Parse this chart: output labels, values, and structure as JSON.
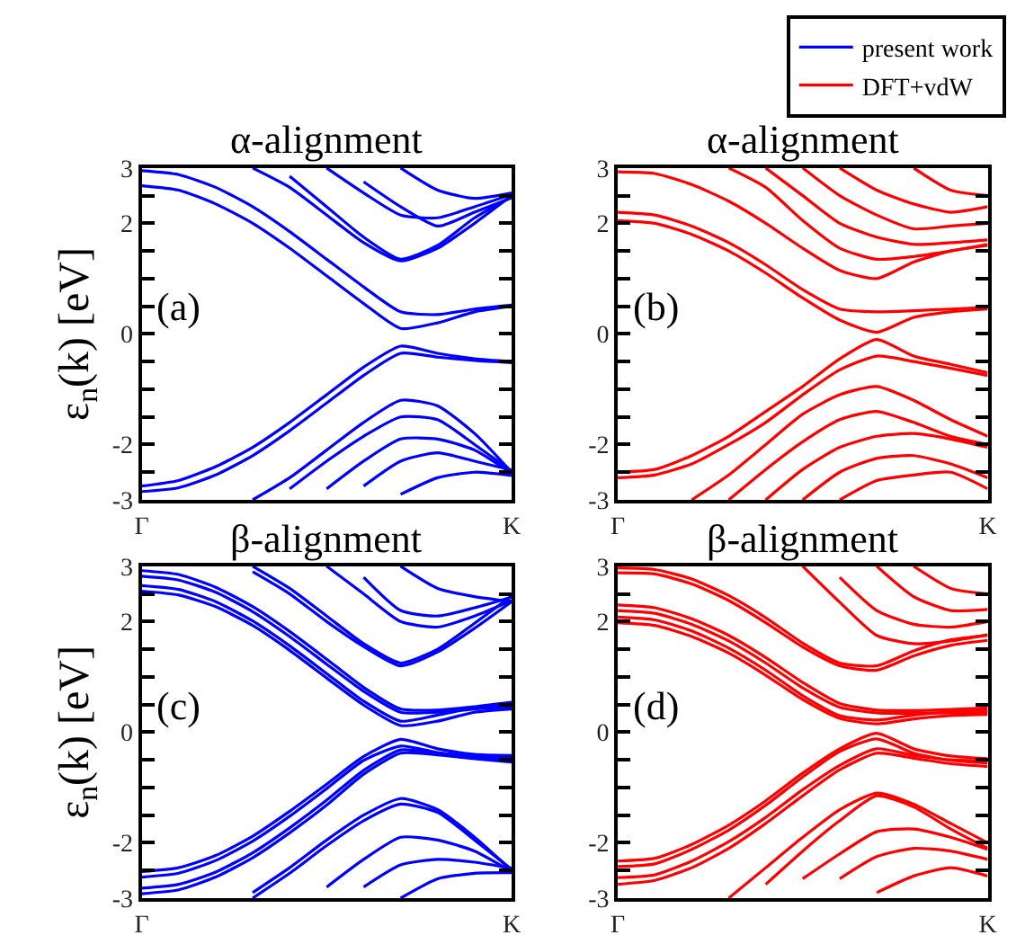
{
  "chart_data": [
    {
      "type": "line",
      "title": "α-alignment",
      "ylabel": "ε$_{n}$(k) [eV]",
      "annotations": [
        "(a)"
      ],
      "categories": [
        "Γ",
        null,
        null,
        null,
        null,
        null,
        null,
        null,
        null,
        null,
        "K"
      ],
      "ylim": [
        -3,
        3
      ],
      "yticks": [
        -3,
        {
          "value": -2.5,
          "label": null
        },
        -2,
        {
          "value": -1.5,
          "label": null
        },
        {
          "value": -1,
          "label": null
        },
        {
          "value": -0.5,
          "label": null
        },
        0,
        {
          "value": 0.5,
          "label": null
        },
        {
          "value": 1,
          "label": null
        },
        {
          "value": 1.5,
          "label": null
        },
        2,
        {
          "value": 2.5,
          "label": null
        },
        3
      ],
      "legend": "top right",
      "series": [
        {
          "name": "present work",
          "color": "#0000ff",
          "values": [
            2.68,
            2.6,
            2.35,
            2.0,
            1.55,
            1.05,
            0.55,
            0.1,
            0.2,
            0.4,
            0.5
          ]
        },
        {
          "color": "#0000ff",
          "values": [
            2.95,
            2.88,
            2.65,
            2.3,
            1.85,
            1.35,
            0.85,
            0.4,
            0.35,
            0.45,
            0.52
          ]
        },
        {
          "color": "#0000ff",
          "values": [
            -2.75,
            -2.65,
            -2.4,
            -2.05,
            -1.6,
            -1.1,
            -0.6,
            -0.22,
            -0.35,
            -0.45,
            -0.5
          ]
        },
        {
          "color": "#0000ff",
          "values": [
            -2.85,
            -2.78,
            -2.55,
            -2.2,
            -1.75,
            -1.25,
            -0.75,
            -0.35,
            -0.42,
            -0.48,
            -0.52
          ]
        },
        {
          "color": "#0000ff",
          "values": [
            null,
            null,
            null,
            3.0,
            2.65,
            2.15,
            1.65,
            1.32,
            1.55,
            2.0,
            2.5
          ]
        },
        {
          "color": "#0000ff",
          "values": [
            null,
            null,
            null,
            null,
            2.85,
            2.3,
            1.75,
            1.35,
            1.6,
            2.1,
            2.48
          ]
        },
        {
          "color": "#0000ff",
          "values": [
            null,
            null,
            null,
            null,
            null,
            3.0,
            2.55,
            2.15,
            2.1,
            2.3,
            2.52
          ]
        },
        {
          "color": "#0000ff",
          "values": [
            null,
            null,
            null,
            null,
            null,
            null,
            2.75,
            2.3,
            1.95,
            2.2,
            2.46
          ]
        },
        {
          "color": "#0000ff",
          "values": [
            null,
            null,
            null,
            null,
            null,
            null,
            null,
            3.0,
            2.6,
            2.45,
            2.55
          ]
        },
        {
          "color": "#0000ff",
          "values": [
            null,
            null,
            null,
            -3.0,
            -2.6,
            -2.1,
            -1.6,
            -1.2,
            -1.3,
            -1.8,
            -2.5
          ]
        },
        {
          "color": "#0000ff",
          "values": [
            null,
            null,
            null,
            null,
            -2.8,
            -2.3,
            -1.85,
            -1.5,
            -1.55,
            -2.0,
            -2.48
          ]
        },
        {
          "color": "#0000ff",
          "values": [
            null,
            null,
            null,
            null,
            null,
            -2.8,
            -2.3,
            -1.9,
            -1.9,
            -2.1,
            -2.52
          ]
        },
        {
          "color": "#0000ff",
          "values": [
            null,
            null,
            null,
            null,
            null,
            null,
            -2.75,
            -2.3,
            -2.15,
            -2.3,
            -2.46
          ]
        },
        {
          "color": "#0000ff",
          "values": [
            null,
            null,
            null,
            null,
            null,
            null,
            null,
            -2.9,
            -2.6,
            -2.5,
            -2.56
          ]
        }
      ]
    },
    {
      "type": "line",
      "title": "α-alignment",
      "annotations": [
        "(b)"
      ],
      "categories": [
        "Γ",
        null,
        null,
        null,
        null,
        null,
        null,
        null,
        null,
        null,
        "K"
      ],
      "ylim": [
        -3,
        3
      ],
      "yticks": [
        -3,
        {
          "value": -2.5,
          "label": null
        },
        -2,
        {
          "value": -1.5,
          "label": null
        },
        {
          "value": -1,
          "label": null
        },
        {
          "value": -0.5,
          "label": null
        },
        0,
        {
          "value": 0.5,
          "label": null
        },
        {
          "value": 1,
          "label": null
        },
        {
          "value": 1.5,
          "label": null
        },
        2,
        {
          "value": 2.5,
          "label": null
        },
        3
      ],
      "legend": "top right",
      "series": [
        {
          "name": "DFT+vdW",
          "color": "#ff0000",
          "values": [
            2.05,
            2.0,
            1.8,
            1.5,
            1.1,
            0.65,
            0.25,
            0.03,
            0.3,
            0.4,
            0.45
          ]
        },
        {
          "color": "#ff0000",
          "values": [
            2.2,
            2.15,
            1.95,
            1.65,
            1.25,
            0.8,
            0.45,
            0.4,
            0.42,
            0.45,
            0.48
          ]
        },
        {
          "color": "#ff0000",
          "values": [
            2.93,
            2.9,
            2.7,
            2.4,
            2.0,
            1.55,
            1.15,
            1.0,
            1.3,
            1.5,
            1.6
          ]
        },
        {
          "color": "#ff0000",
          "values": [
            -2.5,
            -2.45,
            -2.2,
            -1.85,
            -1.4,
            -0.95,
            -0.45,
            -0.1,
            -0.4,
            -0.55,
            -0.7
          ]
        },
        {
          "color": "#ff0000",
          "values": [
            -2.6,
            -2.55,
            -2.35,
            -2.0,
            -1.6,
            -1.1,
            -0.65,
            -0.4,
            -0.5,
            -0.62,
            -0.75
          ]
        },
        {
          "color": "#ff0000",
          "values": [
            null,
            null,
            -3.0,
            -2.55,
            -2.0,
            -1.45,
            -1.1,
            -0.95,
            -1.2,
            -1.55,
            -1.85
          ]
        },
        {
          "color": "#ff0000",
          "values": [
            null,
            null,
            null,
            -3.0,
            -2.45,
            -1.95,
            -1.55,
            -1.4,
            -1.6,
            -1.85,
            -2.0
          ]
        },
        {
          "color": "#ff0000",
          "values": [
            null,
            null,
            null,
            null,
            -3.0,
            -2.45,
            -2.05,
            -1.85,
            -1.8,
            -1.9,
            -2.05
          ]
        },
        {
          "color": "#ff0000",
          "values": [
            null,
            null,
            null,
            null,
            null,
            -3.0,
            -2.5,
            -2.25,
            -2.2,
            -2.35,
            -2.6
          ]
        },
        {
          "color": "#ff0000",
          "values": [
            null,
            null,
            null,
            null,
            null,
            null,
            -3.0,
            -2.65,
            -2.55,
            -2.5,
            -2.8
          ]
        },
        {
          "color": "#ff0000",
          "values": [
            null,
            null,
            null,
            3.0,
            2.65,
            2.05,
            1.55,
            1.35,
            1.4,
            1.5,
            1.62
          ]
        },
        {
          "color": "#ff0000",
          "values": [
            null,
            null,
            null,
            null,
            3.0,
            2.5,
            2.0,
            1.75,
            1.62,
            1.65,
            1.7
          ]
        },
        {
          "color": "#ff0000",
          "values": [
            null,
            null,
            null,
            null,
            null,
            3.0,
            2.5,
            2.15,
            1.9,
            1.95,
            2.0
          ]
        },
        {
          "color": "#ff0000",
          "values": [
            null,
            null,
            null,
            null,
            null,
            null,
            3.0,
            2.6,
            2.35,
            2.2,
            2.3
          ]
        },
        {
          "color": "#ff0000",
          "values": [
            null,
            null,
            null,
            null,
            null,
            null,
            null,
            null,
            3.0,
            2.6,
            2.5
          ]
        }
      ]
    },
    {
      "type": "line",
      "title": "β-alignment",
      "ylabel": "ε$_{n}$(k) [eV]",
      "annotations": [
        "(c)"
      ],
      "categories": [
        "Γ",
        null,
        null,
        null,
        null,
        null,
        null,
        null,
        null,
        null,
        "K"
      ],
      "ylim": [
        -3,
        3
      ],
      "yticks": [
        -3,
        {
          "value": -2.5,
          "label": null
        },
        -2,
        {
          "value": -1.5,
          "label": null
        },
        {
          "value": -1,
          "label": null
        },
        {
          "value": -0.5,
          "label": null
        },
        0,
        {
          "value": 0.5,
          "label": null
        },
        {
          "value": 1,
          "label": null
        },
        {
          "value": 1.5,
          "label": null
        },
        2,
        {
          "value": 2.5,
          "label": null
        },
        3
      ],
      "series": [
        {
          "color": "#0000ff",
          "values": [
            2.55,
            2.48,
            2.27,
            1.93,
            1.48,
            0.98,
            0.49,
            0.12,
            0.2,
            0.36,
            0.42
          ]
        },
        {
          "color": "#0000ff",
          "values": [
            2.65,
            2.58,
            2.36,
            2.01,
            1.56,
            1.06,
            0.56,
            0.2,
            0.31,
            0.44,
            0.5
          ]
        },
        {
          "color": "#0000ff",
          "values": [
            2.82,
            2.75,
            2.53,
            2.18,
            1.73,
            1.23,
            0.74,
            0.36,
            0.36,
            0.42,
            0.46
          ]
        },
        {
          "color": "#0000ff",
          "values": [
            2.92,
            2.85,
            2.62,
            2.27,
            1.82,
            1.32,
            0.81,
            0.42,
            0.4,
            0.46,
            0.54
          ]
        },
        {
          "color": "#0000ff",
          "values": [
            -2.52,
            -2.45,
            -2.23,
            -1.88,
            -1.43,
            -0.94,
            -0.44,
            -0.13,
            -0.3,
            -0.4,
            -0.42
          ]
        },
        {
          "color": "#0000ff",
          "values": [
            -2.62,
            -2.55,
            -2.32,
            -1.97,
            -1.52,
            -1.02,
            -0.51,
            -0.25,
            -0.37,
            -0.46,
            -0.5
          ]
        },
        {
          "color": "#0000ff",
          "values": [
            -2.82,
            -2.75,
            -2.53,
            -2.18,
            -1.73,
            -1.23,
            -0.69,
            -0.32,
            -0.38,
            -0.42,
            -0.46
          ]
        },
        {
          "color": "#0000ff",
          "values": [
            -2.92,
            -2.85,
            -2.62,
            -2.27,
            -1.82,
            -1.32,
            -0.76,
            -0.38,
            -0.41,
            -0.48,
            -0.54
          ]
        },
        {
          "color": "#0000ff",
          "values": [
            null,
            null,
            null,
            2.9,
            2.5,
            2.0,
            1.55,
            1.2,
            1.45,
            1.88,
            2.36
          ]
        },
        {
          "color": "#0000ff",
          "values": [
            null,
            null,
            null,
            3.0,
            2.6,
            2.1,
            1.6,
            1.25,
            1.5,
            1.97,
            2.46
          ]
        },
        {
          "color": "#0000ff",
          "values": [
            null,
            null,
            null,
            null,
            null,
            3.0,
            2.5,
            2.0,
            1.9,
            2.1,
            2.38
          ]
        },
        {
          "color": "#0000ff",
          "values": [
            null,
            null,
            null,
            null,
            null,
            null,
            2.8,
            2.2,
            2.1,
            2.25,
            2.44
          ]
        },
        {
          "color": "#0000ff",
          "values": [
            null,
            null,
            null,
            null,
            null,
            null,
            null,
            3.0,
            2.6,
            2.45,
            2.36
          ]
        },
        {
          "color": "#0000ff",
          "values": [
            null,
            null,
            null,
            -2.9,
            -2.45,
            -1.95,
            -1.5,
            -1.2,
            -1.4,
            -1.9,
            -2.5
          ]
        },
        {
          "color": "#0000ff",
          "values": [
            null,
            null,
            null,
            -3.0,
            -2.55,
            -2.05,
            -1.6,
            -1.3,
            -1.45,
            -1.95,
            -2.48
          ]
        },
        {
          "color": "#0000ff",
          "values": [
            null,
            null,
            null,
            null,
            null,
            -2.8,
            -2.3,
            -1.9,
            -1.95,
            -2.15,
            -2.52
          ]
        },
        {
          "color": "#0000ff",
          "values": [
            null,
            null,
            null,
            null,
            null,
            null,
            -2.8,
            -2.4,
            -2.3,
            -2.35,
            -2.46
          ]
        },
        {
          "color": "#0000ff",
          "values": [
            null,
            null,
            null,
            null,
            null,
            null,
            null,
            -3.0,
            -2.65,
            -2.55,
            -2.54
          ]
        }
      ]
    },
    {
      "type": "line",
      "title": "β-alignment",
      "annotations": [
        "(d)"
      ],
      "categories": [
        "Γ",
        null,
        null,
        null,
        null,
        null,
        null,
        null,
        null,
        null,
        "K"
      ],
      "ylim": [
        -3,
        3
      ],
      "yticks": [
        -3,
        {
          "value": -2.5,
          "label": null
        },
        -2,
        {
          "value": -1.5,
          "label": null
        },
        {
          "value": -1,
          "label": null
        },
        {
          "value": -0.5,
          "label": null
        },
        0,
        {
          "value": 0.5,
          "label": null
        },
        {
          "value": 1,
          "label": null
        },
        {
          "value": 1.5,
          "label": null
        },
        2,
        {
          "value": 2.5,
          "label": null
        },
        3
      ],
      "series": [
        {
          "color": "#ff0000",
          "values": [
            1.98,
            1.93,
            1.73,
            1.43,
            1.03,
            0.59,
            0.25,
            0.15,
            0.24,
            0.3,
            0.32
          ]
        },
        {
          "color": "#ff0000",
          "values": [
            2.08,
            2.03,
            1.83,
            1.52,
            1.12,
            0.66,
            0.3,
            0.22,
            0.31,
            0.37,
            0.4
          ]
        },
        {
          "color": "#ff0000",
          "values": [
            2.2,
            2.15,
            1.95,
            1.65,
            1.25,
            0.8,
            0.45,
            0.35,
            0.34,
            0.35,
            0.36
          ]
        },
        {
          "color": "#ff0000",
          "values": [
            2.3,
            2.25,
            2.05,
            1.75,
            1.35,
            0.9,
            0.52,
            0.4,
            0.39,
            0.41,
            0.44
          ]
        },
        {
          "color": "#ff0000",
          "values": [
            2.88,
            2.86,
            2.68,
            2.38,
            1.98,
            1.54,
            1.2,
            1.12,
            1.38,
            1.57,
            1.66
          ]
        },
        {
          "color": "#ff0000",
          "values": [
            2.97,
            2.94,
            2.77,
            2.47,
            2.07,
            1.61,
            1.25,
            1.2,
            1.47,
            1.67,
            1.75
          ]
        },
        {
          "color": "#ff0000",
          "values": [
            -2.33,
            -2.28,
            -2.03,
            -1.68,
            -1.24,
            -0.74,
            -0.3,
            -0.02,
            -0.3,
            -0.43,
            -0.48
          ]
        },
        {
          "color": "#ff0000",
          "values": [
            -2.43,
            -2.38,
            -2.12,
            -1.77,
            -1.32,
            -0.81,
            -0.35,
            -0.12,
            -0.38,
            -0.51,
            -0.56
          ]
        },
        {
          "color": "#ff0000",
          "values": [
            -2.63,
            -2.58,
            -2.33,
            -1.98,
            -1.54,
            -1.04,
            -0.6,
            -0.3,
            -0.42,
            -0.5,
            -0.52
          ]
        },
        {
          "color": "#ff0000",
          "values": [
            -2.75,
            -2.68,
            -2.45,
            -2.1,
            -1.65,
            -1.15,
            -0.68,
            -0.38,
            -0.47,
            -0.57,
            -0.62
          ]
        },
        {
          "color": "#ff0000",
          "values": [
            null,
            null,
            null,
            -3.0,
            -2.45,
            -1.9,
            -1.4,
            -1.1,
            -1.3,
            -1.65,
            -2.0
          ]
        },
        {
          "color": "#ff0000",
          "values": [
            null,
            null,
            null,
            null,
            -2.75,
            -2.15,
            -1.6,
            -1.15,
            -1.35,
            -1.75,
            -2.1
          ]
        },
        {
          "color": "#ff0000",
          "values": [
            null,
            null,
            null,
            null,
            null,
            -2.65,
            -2.2,
            -1.8,
            -1.75,
            -1.9,
            -2.12
          ]
        },
        {
          "color": "#ff0000",
          "values": [
            null,
            null,
            null,
            null,
            null,
            null,
            -2.65,
            -2.25,
            -2.1,
            -2.15,
            -2.3
          ]
        },
        {
          "color": "#ff0000",
          "values": [
            null,
            null,
            null,
            null,
            null,
            null,
            null,
            -2.9,
            -2.6,
            -2.45,
            -2.6
          ]
        },
        {
          "color": "#ff0000",
          "values": [
            null,
            null,
            null,
            null,
            null,
            3.0,
            2.35,
            1.75,
            1.6,
            1.65,
            1.76
          ]
        },
        {
          "color": "#ff0000",
          "values": [
            null,
            null,
            null,
            null,
            null,
            null,
            2.8,
            2.2,
            1.95,
            1.9,
            2.0
          ]
        },
        {
          "color": "#ff0000",
          "values": [
            null,
            null,
            null,
            null,
            null,
            null,
            null,
            3.0,
            2.45,
            2.2,
            2.22
          ]
        },
        {
          "color": "#ff0000",
          "values": [
            null,
            null,
            null,
            null,
            null,
            null,
            null,
            null,
            3.0,
            2.6,
            2.5
          ]
        }
      ]
    }
  ]
}
